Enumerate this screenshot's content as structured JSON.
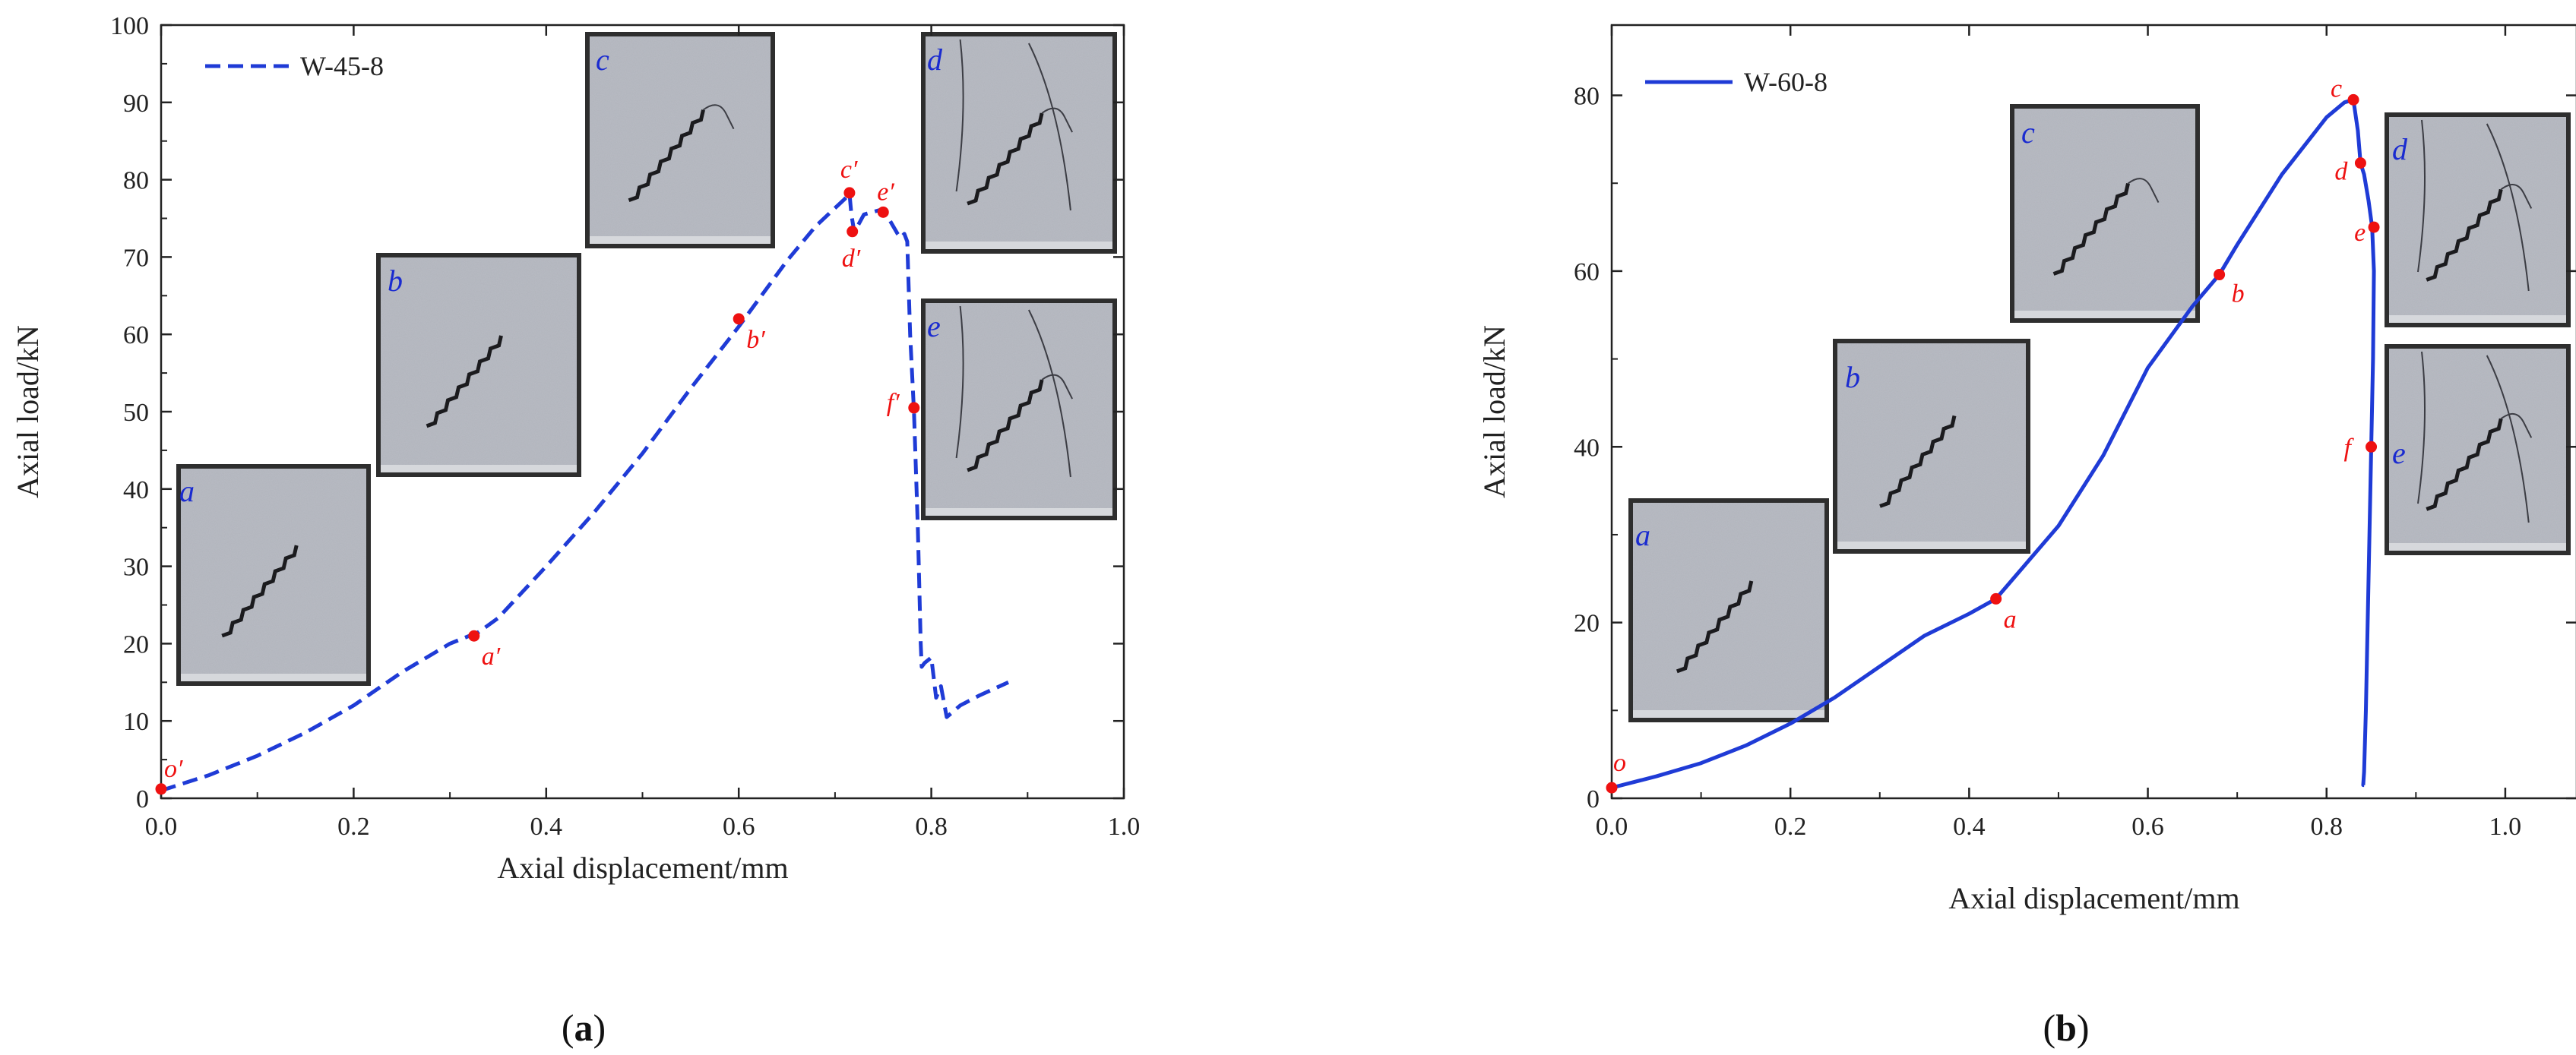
{
  "figure": {
    "captions": [
      {
        "open": "(",
        "letter": "a",
        "close": ")"
      },
      {
        "open": "(",
        "letter": "b",
        "close": ")"
      }
    ]
  },
  "colors": {
    "curve": "#1f3bd6",
    "point": "#ee1111",
    "photo_label": "#1a2bd0",
    "axis": "#222222"
  },
  "chart_data": [
    {
      "type": "line",
      "panel": "a",
      "title": "",
      "xlabel": "Axial displacement/mm",
      "ylabel": "Axial load/kN",
      "xlim": [
        0.0,
        1.0
      ],
      "ylim": [
        0,
        100
      ],
      "x_ticks": [
        0.0,
        0.2,
        0.4,
        0.6,
        0.8,
        1.0
      ],
      "x_tick_labels": [
        "0.0",
        "0.2",
        "0.4",
        "0.6",
        "0.8",
        "1.0"
      ],
      "y_ticks": [
        0,
        10,
        20,
        30,
        40,
        50,
        60,
        70,
        80,
        90,
        100
      ],
      "y_tick_labels": [
        "0",
        "10",
        "20",
        "30",
        "40",
        "50",
        "60",
        "70",
        "80",
        "90",
        "100"
      ],
      "grid": false,
      "legend": {
        "position": "top-left",
        "entries": [
          "W-45-8"
        ]
      },
      "series": [
        {
          "name": "W-45-8",
          "style": "dashed",
          "x": [
            0.0,
            0.05,
            0.1,
            0.15,
            0.2,
            0.25,
            0.3,
            0.33,
            0.35,
            0.4,
            0.45,
            0.5,
            0.55,
            0.6,
            0.65,
            0.68,
            0.71,
            0.715,
            0.717,
            0.72,
            0.73,
            0.75,
            0.765,
            0.768,
            0.772,
            0.775,
            0.778,
            0.782,
            0.786,
            0.789,
            0.79,
            0.793,
            0.8,
            0.805,
            0.81,
            0.816,
            0.83,
            0.85,
            0.88
          ],
          "y": [
            1,
            3,
            5.5,
            8.5,
            12,
            16.3,
            20,
            21.5,
            23.3,
            30,
            37,
            44.6,
            53,
            61,
            69.5,
            74,
            77.5,
            78.2,
            75.5,
            73.2,
            75.5,
            76.2,
            73,
            72.5,
            73,
            72,
            60,
            50,
            35,
            20,
            17,
            17.5,
            18.2,
            13,
            14.5,
            10.5,
            12,
            13.3,
            15
          ]
        }
      ],
      "points": [
        {
          "label": "o′",
          "x": 0.0,
          "y": 1.2
        },
        {
          "label": "a′",
          "x": 0.325,
          "y": 21.0
        },
        {
          "label": "b′",
          "x": 0.6,
          "y": 62.0
        },
        {
          "label": "c′",
          "x": 0.715,
          "y": 78.3
        },
        {
          "label": "d′",
          "x": 0.718,
          "y": 73.3
        },
        {
          "label": "e′",
          "x": 0.75,
          "y": 75.8
        },
        {
          "label": "f′",
          "x": 0.782,
          "y": 50.5
        }
      ],
      "photos": [
        {
          "label": "a"
        },
        {
          "label": "b"
        },
        {
          "label": "c"
        },
        {
          "label": "d"
        },
        {
          "label": "e"
        }
      ]
    },
    {
      "type": "line",
      "panel": "b",
      "title": "",
      "xlabel": "Axial displacement/mm",
      "ylabel": "Axial load/kN",
      "xlim": [
        0.0,
        1.08
      ],
      "ylim": [
        0,
        88
      ],
      "x_ticks": [
        0.0,
        0.2,
        0.4,
        0.6,
        0.8,
        1.0
      ],
      "x_tick_labels": [
        "0.0",
        "0.2",
        "0.4",
        "0.6",
        "0.8",
        "1.0"
      ],
      "y_ticks": [
        0,
        20,
        40,
        60,
        80
      ],
      "y_tick_labels": [
        "0",
        "20",
        "40",
        "60",
        "80"
      ],
      "grid": false,
      "legend": {
        "position": "top-left",
        "entries": [
          "W-60-8"
        ]
      },
      "series": [
        {
          "name": "W-60-8",
          "style": "solid",
          "x": [
            0.0,
            0.05,
            0.1,
            0.15,
            0.2,
            0.25,
            0.3,
            0.35,
            0.4,
            0.43,
            0.5,
            0.55,
            0.6,
            0.65,
            0.68,
            0.7,
            0.75,
            0.8,
            0.82,
            0.83,
            0.835,
            0.838,
            0.842,
            0.847,
            0.851,
            0.853,
            0.852,
            0.85,
            0.848,
            0.846,
            0.844,
            0.842,
            0.841,
            0.842
          ],
          "y": [
            1.2,
            2.5,
            4,
            6,
            8.5,
            11.5,
            15,
            18.5,
            21,
            22.7,
            31,
            39,
            49,
            56,
            59.6,
            63,
            71,
            77.5,
            79.2,
            79.5,
            76,
            72.3,
            71,
            68,
            65,
            60,
            50,
            40,
            30,
            20,
            10,
            3,
            1.5,
            1.5
          ]
        }
      ],
      "points": [
        {
          "label": "o",
          "x": 0.0,
          "y": 1.2
        },
        {
          "label": "a",
          "x": 0.43,
          "y": 22.7
        },
        {
          "label": "b",
          "x": 0.68,
          "y": 59.6
        },
        {
          "label": "c",
          "x": 0.83,
          "y": 79.5
        },
        {
          "label": "d",
          "x": 0.838,
          "y": 72.3
        },
        {
          "label": "e",
          "x": 0.853,
          "y": 65.0
        },
        {
          "label": "f",
          "x": 0.85,
          "y": 40.0
        }
      ],
      "photos": [
        {
          "label": "a"
        },
        {
          "label": "b"
        },
        {
          "label": "c"
        },
        {
          "label": "d"
        },
        {
          "label": "e"
        }
      ]
    }
  ]
}
